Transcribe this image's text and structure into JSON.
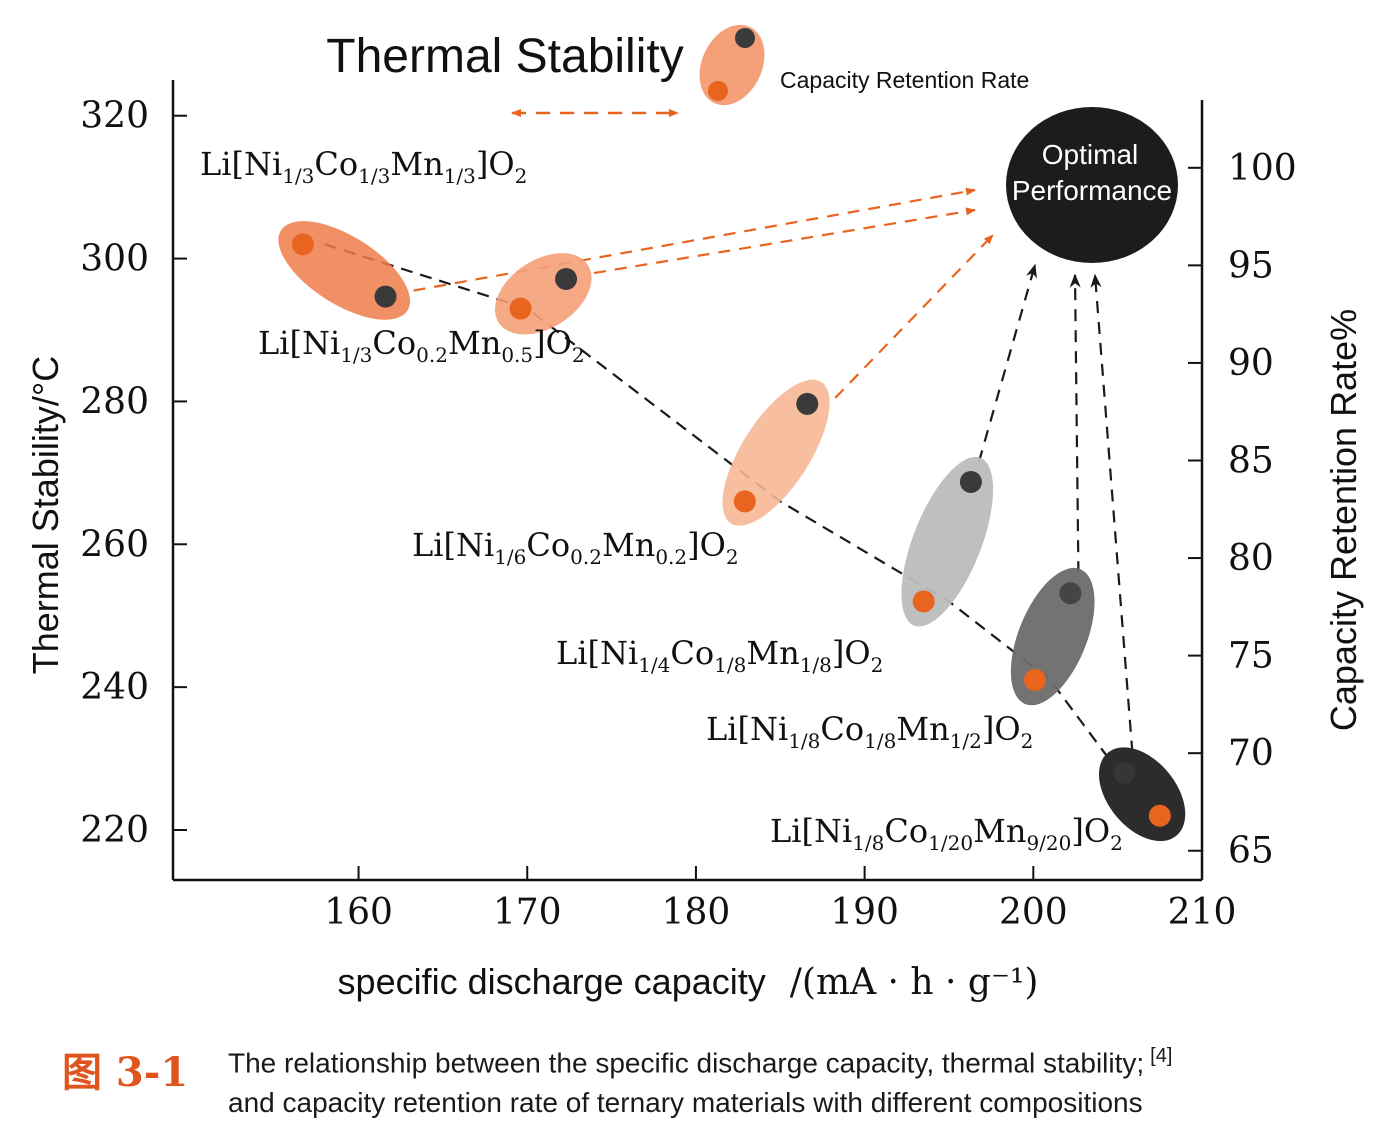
{
  "chart_data": {
    "type": "scatter",
    "title": "Thermal Stability",
    "legend_note": "Capacity Retention Rate",
    "xlabel": "specific discharge capacity",
    "xunit": "/(mA · h · g⁻¹)",
    "ylabel_left": "Thermal Stability/°C",
    "ylabel_right": "Capacity Retention Rate%",
    "xlim": [
      149,
      210
    ],
    "ylim_left": [
      213,
      325
    ],
    "ylim_right": [
      63.5,
      104.5
    ],
    "x_ticks": [
      160,
      170,
      180,
      190,
      200,
      210
    ],
    "y_left_ticks": [
      220,
      240,
      260,
      280,
      300,
      320
    ],
    "y_right_ticks": [
      65,
      70,
      75,
      80,
      85,
      90,
      95,
      100
    ],
    "optimal_label": [
      "Optimal",
      "Performance"
    ],
    "materials": [
      {
        "name": "Li[Ni1/3Co1/3Mn1/3]O2",
        "capacity": 158,
        "thermal_stability": 302,
        "capacity_retention": 93.4,
        "thermal_x": 156.7,
        "retention_x": 161.6,
        "ellipse_color": "#ef7d49",
        "ellipse_opacity": 0.85
      },
      {
        "name": "Li[Ni1/3Co0.2Mn0.5]O2",
        "capacity": 170,
        "thermal_stability": 293,
        "capacity_retention": 94.3,
        "thermal_x": 169.6,
        "retention_x": 172.3,
        "ellipse_color": "#f4a078",
        "ellipse_opacity": 0.9
      },
      {
        "name": "Li[Ni1/6Co0.2Mn0.2]O2",
        "capacity": 185,
        "thermal_stability": 266,
        "capacity_retention": 87.9,
        "thermal_x": 182.9,
        "retention_x": 186.6,
        "ellipse_color": "#f7b796",
        "ellipse_opacity": 0.9
      },
      {
        "name": "Li[Ni1/4Co1/8Mn1/8]O2",
        "capacity": 195,
        "thermal_stability": 252,
        "capacity_retention": 83.9,
        "thermal_x": 193.5,
        "retention_x": 196.3,
        "ellipse_color": "#bcbcbc",
        "ellipse_opacity": 0.95
      },
      {
        "name": "Li[Ni1/8Co1/8Mn1/2]O2",
        "capacity": 201,
        "thermal_stability": 241,
        "capacity_retention": 78.2,
        "thermal_x": 200.1,
        "retention_x": 202.2,
        "ellipse_color": "#6c6c6c",
        "ellipse_opacity": 0.95
      },
      {
        "name": "Li[Ni1/8Co1/20Mn9/20]O2",
        "capacity": 207,
        "thermal_stability": 222,
        "capacity_retention": 69.0,
        "thermal_x": 207.5,
        "retention_x": 205.4,
        "ellipse_color": "#2c2c2c",
        "ellipse_opacity": 1.0
      }
    ],
    "colors": {
      "thermal_dot": "#e8641f",
      "retention_dot": "#3a3a3a",
      "arrow_orange": "#e8641f",
      "arrow_dark": "#1a1a1a",
      "optimal_circle": "#1c1c1c",
      "axis": "#111111"
    }
  },
  "caption": {
    "figure_number": "图 3-1",
    "text_line1": "The relationship between the specific discharge capacity, thermal stability;",
    "reference": "[4]",
    "text_line2": "and capacity retention rate of ternary materials with different compositions"
  }
}
